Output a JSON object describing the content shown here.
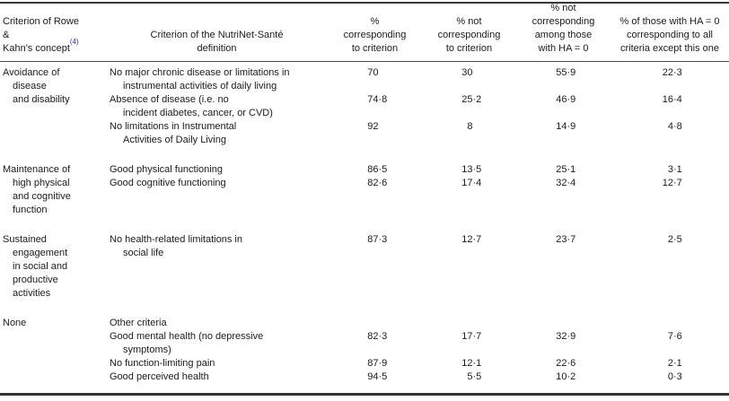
{
  "table": {
    "header": {
      "col1": {
        "lines": [
          "Criterion of Rowe",
          "&",
          "Kahn's concept"
        ],
        "sup": "(4)"
      },
      "col2": {
        "lines": [
          "Criterion of the NutriNet-Santé",
          "definition"
        ]
      },
      "col3": {
        "lines": [
          "%",
          "corresponding",
          "to criterion"
        ]
      },
      "col4": {
        "lines": [
          "% not",
          "corresponding",
          "to criterion"
        ]
      },
      "col5": {
        "lines": [
          "% not",
          "corresponding",
          "among those",
          "with HA = 0"
        ]
      },
      "col6": {
        "lines": [
          "% of those with HA = 0",
          "corresponding to all",
          "criteria except this one"
        ]
      }
    },
    "groups": [
      {
        "concept": "Avoidance of disease and disability",
        "concept_lines": [
          "Avoidance of",
          "disease",
          "and disability"
        ],
        "rows": [
          {
            "criterion": "No major chronic disease or limitations in instrumental activities of daily living",
            "criterion_lines": [
              "No major chronic disease or limitations in",
              "instrumental activities of daily living"
            ],
            "values": [
              "70",
              "30",
              "55·9",
              "22·3"
            ]
          },
          {
            "criterion": "Absence of disease (i.e. no incident diabetes, cancer, or CVD)",
            "criterion_lines": [
              "Absence of disease (i.e. no",
              "incident diabetes, cancer, or CVD)"
            ],
            "values": [
              "74·8",
              "25·2",
              "46·9",
              "16·4"
            ]
          },
          {
            "criterion": "No limitations in Instrumental Activities of Daily Living",
            "criterion_lines": [
              "No limitations in Instrumental",
              "Activities of Daily Living"
            ],
            "values": [
              "92",
              "8",
              "14·9",
              "4·8"
            ]
          }
        ]
      },
      {
        "concept": "Maintenance of high physical and cognitive function",
        "concept_lines": [
          "Maintenance of",
          "high physical",
          "and cognitive",
          "function"
        ],
        "rows": [
          {
            "criterion": "Good physical functioning",
            "criterion_lines": [
              "Good physical functioning"
            ],
            "values": [
              "86·5",
              "13·5",
              "25·1",
              "3·1"
            ]
          },
          {
            "criterion": "Good cognitive functioning",
            "criterion_lines": [
              "Good cognitive functioning"
            ],
            "values": [
              "82·6",
              "17·4",
              "32·4",
              "12·7"
            ]
          }
        ]
      },
      {
        "concept": "Sustained engagement in social and productive activities",
        "concept_lines": [
          "Sustained",
          "engagement",
          "in social and",
          "productive",
          "activities"
        ],
        "rows": [
          {
            "criterion": "No health-related limitations in social life",
            "criterion_lines": [
              "No health-related limitations in",
              "social life"
            ],
            "values": [
              "87·3",
              "12·7",
              "23·7",
              "2·5"
            ]
          }
        ]
      },
      {
        "concept": "None",
        "concept_lines": [
          "None"
        ],
        "rows": [
          {
            "criterion": "Other criteria",
            "criterion_lines": [
              "Other criteria"
            ],
            "values": [
              "",
              "",
              "",
              ""
            ]
          },
          {
            "criterion": "Good mental health (no depressive symptoms)",
            "criterion_lines": [
              "Good mental health (no depressive",
              "symptoms)"
            ],
            "values": [
              "82·3",
              "17·7",
              "32·9",
              "7·6"
            ]
          },
          {
            "criterion": "No function-limiting pain",
            "criterion_lines": [
              "No function-limiting pain"
            ],
            "values": [
              "87·9",
              "12·1",
              "22·6",
              "2·1"
            ]
          },
          {
            "criterion": "Good perceived health",
            "criterion_lines": [
              "Good perceived health"
            ],
            "values": [
              "94·5",
              "5·5",
              "10·2",
              "0·3"
            ]
          }
        ]
      }
    ],
    "colors": {
      "reference_link_blue": "#2a2ac8",
      "rule_dark": "#383838",
      "text": "#1b1b1b",
      "background": "#ffffff"
    }
  }
}
